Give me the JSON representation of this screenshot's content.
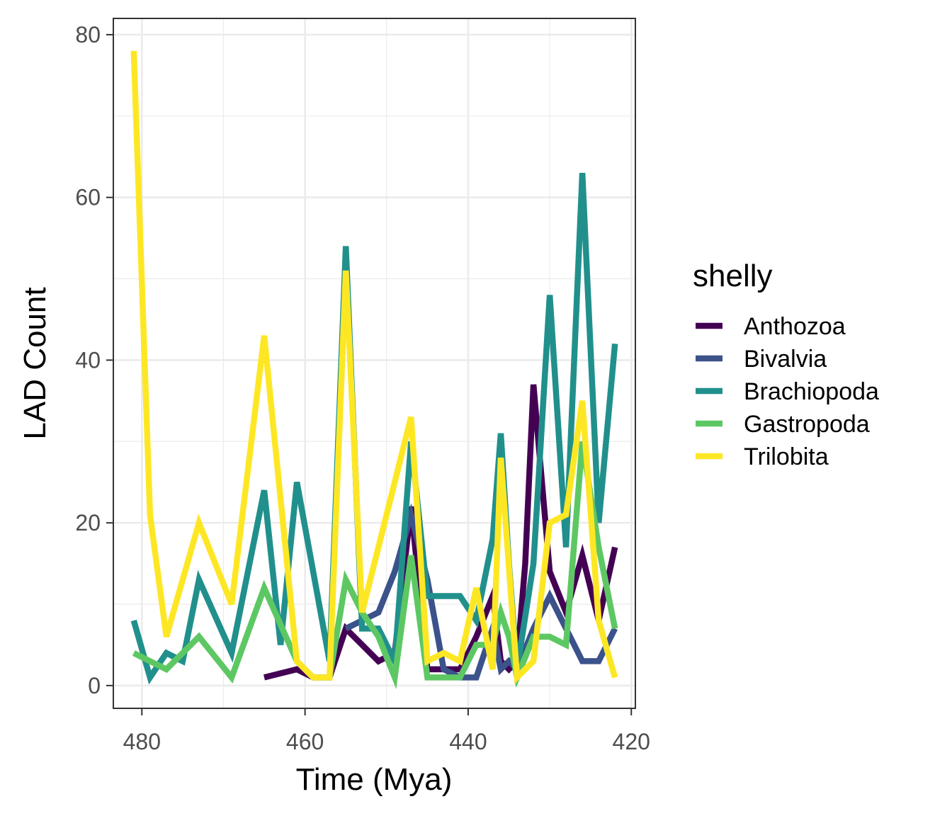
{
  "chart_data": {
    "type": "line",
    "xlabel": "Time (Mya)",
    "ylabel": "LAD Count",
    "xlim": [
      483.5,
      419.5
    ],
    "ylim": [
      -2.8,
      82
    ],
    "x_reversed": true,
    "x_ticks": [
      480,
      460,
      440,
      420
    ],
    "y_ticks": [
      0,
      20,
      40,
      60,
      80
    ],
    "grid": true,
    "legend": {
      "title": "shelly",
      "placement": "right"
    },
    "series": [
      {
        "name": "Anthozoa",
        "color": "#440154",
        "x": [
          465,
          461,
          459,
          457,
          455,
          451,
          449,
          447,
          445,
          443,
          441,
          439,
          437,
          436,
          435,
          434,
          433,
          432,
          430,
          428,
          426,
          424,
          422
        ],
        "y": [
          1,
          2,
          1,
          1,
          7,
          3,
          4,
          22,
          2,
          2,
          2,
          6,
          11,
          3,
          2,
          3,
          15,
          37,
          14,
          9,
          16,
          8,
          17
        ]
      },
      {
        "name": "Bivalvia",
        "color": "#3B528B",
        "x": [
          455,
          451,
          449,
          447,
          445,
          443,
          441,
          439,
          437,
          436,
          435,
          434,
          432,
          430,
          428,
          426,
          424,
          422
        ],
        "y": [
          7,
          9,
          14,
          21,
          13,
          2,
          1,
          1,
          7,
          2,
          3,
          2,
          7,
          11,
          7,
          3,
          3,
          7
        ]
      },
      {
        "name": "Brachiopoda",
        "color": "#21908C",
        "x": [
          481,
          479,
          477,
          475,
          473,
          469,
          465,
          463,
          461,
          457,
          455,
          453,
          451,
          449,
          447,
          445,
          443,
          441,
          439,
          437,
          436,
          435,
          434,
          432,
          430,
          428,
          426,
          424,
          422
        ],
        "y": [
          8,
          1,
          4,
          3,
          13,
          4,
          24,
          5,
          25,
          3,
          54,
          7,
          7,
          3,
          30,
          11,
          11,
          11,
          8,
          18,
          31,
          15,
          2,
          15,
          48,
          17,
          63,
          20,
          42
        ]
      },
      {
        "name": "Gastropoda",
        "color": "#5DC863",
        "x": [
          481,
          479,
          477,
          473,
          469,
          465,
          461,
          459,
          457,
          455,
          453,
          451,
          449,
          447,
          445,
          443,
          441,
          439,
          437,
          436,
          435,
          434,
          432,
          430,
          428,
          426,
          424,
          422
        ],
        "y": [
          4,
          3,
          2,
          6,
          1,
          12,
          3,
          1,
          1,
          13,
          9,
          6,
          1,
          16,
          1,
          1,
          1,
          5,
          5,
          9,
          6,
          1,
          6,
          6,
          5,
          30,
          17,
          7
        ]
      },
      {
        "name": "Trilobita",
        "color": "#FDE725",
        "x": [
          481,
          479,
          477,
          473,
          469,
          465,
          461,
          459,
          457,
          455,
          453,
          447,
          445,
          443,
          441,
          439,
          437,
          436,
          434,
          432,
          430,
          428,
          426,
          424,
          422
        ],
        "y": [
          78,
          21,
          6,
          20,
          10,
          43,
          3,
          1,
          1,
          51,
          9,
          33,
          3,
          4,
          3,
          12,
          2,
          28,
          1,
          3,
          20,
          21,
          35,
          8,
          1
        ]
      }
    ]
  }
}
